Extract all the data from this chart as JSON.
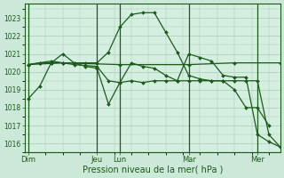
{
  "xlabel": "Pression niveau de la mer( hPa )",
  "bg_color": "#cce8d8",
  "plot_bg_color": "#d4eee0",
  "grid_color": "#aacab8",
  "line_color": "#1a5c1a",
  "marker_color": "#1a5c1a",
  "ylim": [
    1015.5,
    1023.8
  ],
  "yticks": [
    1016,
    1017,
    1018,
    1019,
    1020,
    1021,
    1022,
    1023
  ],
  "day_labels": [
    "Dim",
    "Jeu",
    "Lun",
    "Mar",
    "Mer"
  ],
  "day_positions": [
    0,
    72,
    96,
    168,
    240
  ],
  "xlim": [
    -4,
    264
  ],
  "series": [
    {
      "x": [
        0,
        12,
        24,
        36,
        48,
        60,
        72,
        84,
        96,
        108,
        120,
        132,
        144,
        156,
        168,
        180,
        192,
        204,
        216,
        228,
        240,
        252
      ],
      "y": [
        1018.5,
        1019.2,
        1020.5,
        1020.5,
        1020.5,
        1020.5,
        1020.5,
        1021.1,
        1022.5,
        1023.2,
        1023.3,
        1023.3,
        1022.2,
        1021.1,
        1019.8,
        1019.6,
        1019.5,
        1019.5,
        1019.0,
        1018.0,
        1018.0,
        1017.0
      ]
    },
    {
      "x": [
        0,
        12,
        24,
        36,
        48,
        60,
        72,
        84,
        96,
        108,
        120,
        132,
        144,
        156,
        168,
        180,
        192,
        204,
        216,
        228,
        240,
        252,
        264
      ],
      "y": [
        1020.4,
        1020.5,
        1020.5,
        1021.0,
        1020.5,
        1020.3,
        1020.2,
        1018.2,
        1019.4,
        1020.5,
        1020.3,
        1020.2,
        1019.8,
        1019.5,
        1021.0,
        1020.8,
        1020.6,
        1019.8,
        1019.7,
        1019.7,
        1016.5,
        1016.1,
        1015.8
      ]
    },
    {
      "x": [
        0,
        36,
        96,
        168,
        216,
        264
      ],
      "y": [
        1020.4,
        1020.5,
        1020.4,
        1020.4,
        1020.5,
        1020.5
      ]
    },
    {
      "x": [
        0,
        12,
        24,
        48,
        72,
        84,
        96,
        108,
        120,
        132,
        144,
        156,
        168,
        180,
        192,
        204,
        216,
        228,
        240,
        252,
        264
      ],
      "y": [
        1020.4,
        1020.5,
        1020.6,
        1020.4,
        1020.3,
        1019.5,
        1019.4,
        1019.5,
        1019.4,
        1019.5,
        1019.5,
        1019.5,
        1019.5,
        1019.5,
        1019.5,
        1019.5,
        1019.5,
        1019.5,
        1019.5,
        1016.5,
        1015.8
      ]
    }
  ]
}
